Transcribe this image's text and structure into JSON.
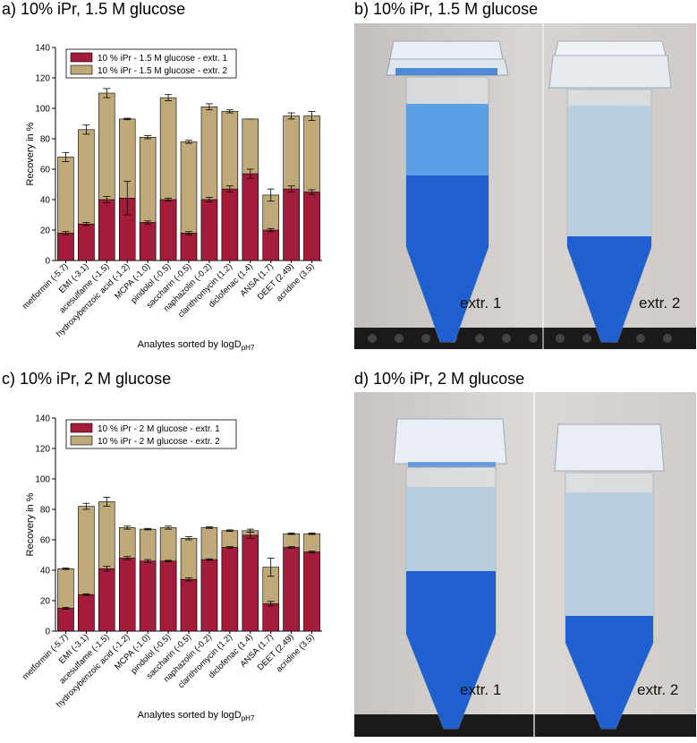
{
  "panels": {
    "a": {
      "label": "a) 10% iPr, 1.5 M glucose"
    },
    "b": {
      "label": "b) 10% iPr, 1.5 M glucose",
      "left_tube": "extr. 1",
      "right_tube": "extr. 2"
    },
    "c": {
      "label": "c) 10% iPr, 2 M glucose"
    },
    "d": {
      "label": "d) 10% iPr, 2 M glucose",
      "left_tube": "extr. 1",
      "right_tube": "extr. 2"
    }
  },
  "colors": {
    "extr1": "#a51c3a",
    "extr2": "#bfa978",
    "liquid": "#1f6fd6",
    "liquid_light": "#9fc6e8"
  },
  "chart_data": [
    {
      "type": "bar",
      "stacked": true,
      "ylabel": "Recovery in %",
      "xlabel": "Analytes sorted by logD",
      "xlabel_sub": "pH7",
      "ylim": [
        0,
        140
      ],
      "yticks": [
        0,
        20,
        40,
        60,
        80,
        100,
        120,
        140
      ],
      "legend_position": "top-left",
      "categories": [
        "metformin (-5.7)",
        "EMI (-3.1)",
        "acesulfame (-1.5)",
        "hydroxybenzoic acid (-1.2)",
        "MCPA (-1.0)",
        "pindolol (-0.5)",
        "saccharin (-0.5)",
        "naphazolin (-0.2)",
        "clarithromycin (1.2)",
        "diclofenac (1.4)",
        "ANSA (1.7)",
        "DEET (2.49)",
        "acridine (3.5)"
      ],
      "series": [
        {
          "name": "10 % iPr - 1.5 M glucose - extr. 1",
          "values": [
            18,
            24,
            40,
            41,
            25,
            40,
            18,
            40,
            47,
            57,
            20,
            47,
            45
          ],
          "errors": [
            1,
            1,
            2,
            11,
            1,
            1,
            1,
            1.5,
            2,
            3,
            1,
            2,
            1.5
          ]
        },
        {
          "name": "10 % iPr - 1.5 M glucose - extr. 2",
          "values": [
            68,
            86,
            110,
            93,
            81,
            107,
            78,
            101,
            98,
            93,
            43,
            95,
            95
          ],
          "errors": [
            3,
            3,
            3,
            0.5,
            1,
            2,
            1,
            2,
            1,
            0,
            4,
            2,
            3
          ]
        }
      ]
    },
    {
      "type": "bar",
      "stacked": true,
      "ylabel": "Recovery in %",
      "xlabel": "Analytes sorted by logD",
      "xlabel_sub": "pH7",
      "ylim": [
        0,
        140
      ],
      "yticks": [
        0,
        20,
        40,
        60,
        80,
        100,
        120,
        140
      ],
      "legend_position": "top-left",
      "categories": [
        "metformin (-5.7)",
        "EMI (-3.1)",
        "acesulfame (-1.5)",
        "hydroxybenzoic acid (-1.2)",
        "MCPA (-1.0)",
        "pindolol (-0.5)",
        "saccharin (-0.5)",
        "naphazolin (-0.2)",
        "clarithromycin (1.2)",
        "diclofenac (1.4)",
        "ANSA (1.7)",
        "DEET (2.49)",
        "acridine (3.5)"
      ],
      "series": [
        {
          "name": "10 % iPr - 2 M glucose - extr. 1",
          "values": [
            15,
            24,
            41,
            48,
            46,
            46,
            34,
            47,
            55,
            63,
            18,
            55,
            52
          ],
          "errors": [
            0.5,
            0.5,
            1.5,
            1,
            1,
            0.5,
            1,
            0.5,
            0.5,
            2,
            1.5,
            0.5,
            0.5
          ]
        },
        {
          "name": "10 % iPr - 2 M glucose - extr. 2",
          "values": [
            41,
            82,
            85,
            68,
            67,
            68,
            61,
            68,
            66,
            66,
            42,
            64,
            64
          ],
          "errors": [
            0.5,
            2,
            3,
            1,
            0.5,
            1,
            1,
            0.5,
            0.5,
            1,
            6,
            0.5,
            0.5
          ]
        }
      ]
    }
  ]
}
